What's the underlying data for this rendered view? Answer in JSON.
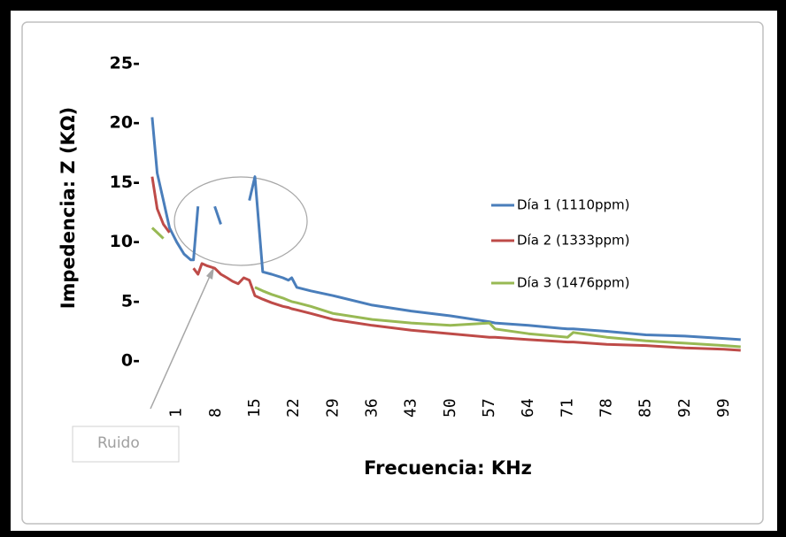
{
  "chart_data": {
    "type": "line",
    "y_label": "Impedencia: Z (KΩ)",
    "x_label": "Frecuencia: KHz",
    "annotation": "Ruido",
    "x": [
      -3.4,
      -2.5,
      -1.4,
      -0.3,
      1,
      2.3,
      3.5,
      4,
      4.8,
      5.5,
      6.5,
      7.8,
      8.9,
      10,
      11,
      12,
      13,
      14,
      15,
      16.4,
      18,
      20,
      21,
      21.6,
      22.5,
      25,
      29,
      36,
      43,
      50,
      57,
      58,
      64,
      71,
      72,
      78,
      85,
      92,
      99,
      102
    ],
    "series": [
      {
        "name": "Día 1 (1110ppm)",
        "color": "#4a7ebb",
        "values": [
          20.5,
          15.8,
          13.5,
          11.2,
          10,
          9,
          8.5,
          8.5,
          13,
          null,
          null,
          13,
          11.5,
          null,
          null,
          null,
          null,
          13.5,
          15.5,
          7.5,
          7.3,
          7,
          6.8,
          7,
          6.2,
          5.9,
          5.5,
          4.7,
          4.2,
          3.8,
          3.3,
          3.2,
          3,
          2.7,
          2.7,
          2.5,
          2.2,
          2.1,
          1.9,
          1.8
        ]
      },
      {
        "name": "Día 2 (1333ppm)",
        "color": "#be4b48",
        "values": [
          15.5,
          12.8,
          11.5,
          10.8,
          null,
          null,
          null,
          7.8,
          7.3,
          8.2,
          8,
          7.8,
          7.3,
          7,
          6.7,
          6.5,
          7,
          6.8,
          5.5,
          5.2,
          4.9,
          4.6,
          4.5,
          4.4,
          4.3,
          4,
          3.5,
          3,
          2.6,
          2.3,
          2,
          2,
          1.8,
          1.6,
          1.6,
          1.4,
          1.3,
          1.1,
          1,
          0.9
        ]
      },
      {
        "name": "Día 3 (1476ppm)",
        "color": "#98b954",
        "values": [
          11.2,
          10.8,
          10.3,
          null,
          null,
          null,
          null,
          null,
          null,
          null,
          null,
          null,
          null,
          null,
          null,
          null,
          null,
          null,
          6.2,
          5.9,
          5.6,
          5.3,
          5.1,
          5,
          4.9,
          4.6,
          4,
          3.5,
          3.2,
          3,
          3.2,
          2.7,
          2.3,
          2,
          2.4,
          2,
          1.7,
          1.5,
          1.3,
          1.2
        ]
      }
    ],
    "xlim": [
      -4.5,
      102.5
    ],
    "xticks": [
      1,
      8,
      15,
      22,
      29,
      36,
      43,
      50,
      57,
      64,
      71,
      78,
      85,
      92,
      99
    ],
    "ylim": [
      -2,
      25
    ],
    "yticks": [
      {
        "value": 0,
        "label": "0-"
      },
      {
        "value": 5,
        "label": "5-"
      },
      {
        "value": 10,
        "label": "10-"
      },
      {
        "value": 15,
        "label": "15-"
      },
      {
        "value": 20,
        "label": "20-"
      },
      {
        "value": 25,
        "label": "25-"
      }
    ],
    "grid": false,
    "legend": "right"
  }
}
